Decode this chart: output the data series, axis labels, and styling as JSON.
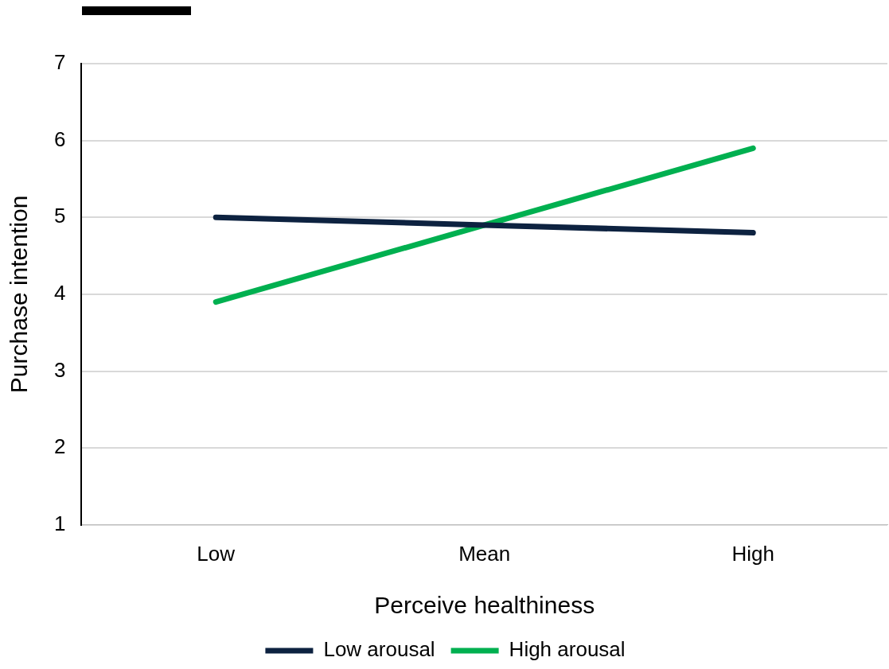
{
  "chart_data": {
    "type": "line",
    "xlabel": "Perceive healthiness",
    "ylabel": "Purchase intention",
    "categories": [
      "Low",
      "Mean",
      "High"
    ],
    "series": [
      {
        "name": "Low arousal",
        "color": "#0d2240",
        "values": [
          5.0,
          4.9,
          4.8
        ]
      },
      {
        "name": "High arousal",
        "color": "#00b050",
        "values": [
          3.9,
          4.9,
          5.9
        ]
      }
    ],
    "ylim": [
      1,
      7
    ],
    "yticks": [
      1,
      2,
      3,
      4,
      5,
      6,
      7
    ],
    "grid": "y",
    "legend": "bottom",
    "marker": "none",
    "line_style": "solid"
  }
}
